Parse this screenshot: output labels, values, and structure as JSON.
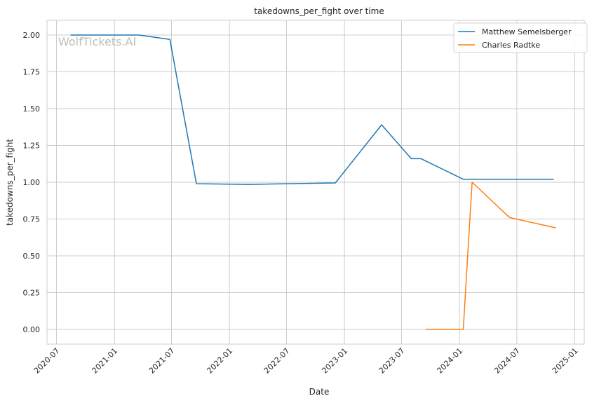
{
  "chart_data": {
    "type": "line",
    "title": "takedowns_per_fight over time",
    "xlabel": "Date",
    "ylabel": "takedowns_per_fight",
    "watermark": "WolfTickets.AI",
    "ylim": [
      -0.1,
      2.1
    ],
    "xlim": [
      "2020-06-01",
      "2025-01-31"
    ],
    "y_ticks": [
      0.0,
      0.25,
      0.5,
      0.75,
      1.0,
      1.25,
      1.5,
      1.75,
      2.0
    ],
    "y_tick_labels": [
      "0.00",
      "0.25",
      "0.50",
      "0.75",
      "1.00",
      "1.25",
      "1.50",
      "1.75",
      "2.00"
    ],
    "x_ticks": [
      "2020-07-01",
      "2021-01-01",
      "2021-07-01",
      "2022-01-01",
      "2022-07-01",
      "2023-01-01",
      "2023-07-01",
      "2024-01-01",
      "2024-07-01",
      "2025-01-01"
    ],
    "x_tick_labels": [
      "2020-07",
      "2021-01",
      "2021-07",
      "2022-01",
      "2022-07",
      "2023-01",
      "2023-07",
      "2024-01",
      "2024-07",
      "2025-01"
    ],
    "grid": true,
    "legend_position": "top-right",
    "series": [
      {
        "name": "Matthew Semelsberger",
        "color": "#1f77b4",
        "points": [
          {
            "x": "2020-08-15",
            "y": 2.0
          },
          {
            "x": "2021-03-20",
            "y": 2.0
          },
          {
            "x": "2021-06-26",
            "y": 1.97
          },
          {
            "x": "2021-09-18",
            "y": 0.99
          },
          {
            "x": "2022-03-05",
            "y": 0.985
          },
          {
            "x": "2022-12-03",
            "y": 0.995
          },
          {
            "x": "2023-04-29",
            "y": 1.39
          },
          {
            "x": "2023-08-01",
            "y": 1.16
          },
          {
            "x": "2023-09-01",
            "y": 1.16
          },
          {
            "x": "2024-01-13",
            "y": 1.02
          },
          {
            "x": "2024-10-26",
            "y": 1.02
          }
        ]
      },
      {
        "name": "Charles Radtke",
        "color": "#ff7f0e",
        "points": [
          {
            "x": "2023-09-16",
            "y": 0.0
          },
          {
            "x": "2024-01-13",
            "y": 0.0
          },
          {
            "x": "2024-02-10",
            "y": 1.0
          },
          {
            "x": "2024-06-08",
            "y": 0.76
          },
          {
            "x": "2024-11-02",
            "y": 0.69
          }
        ]
      }
    ]
  }
}
